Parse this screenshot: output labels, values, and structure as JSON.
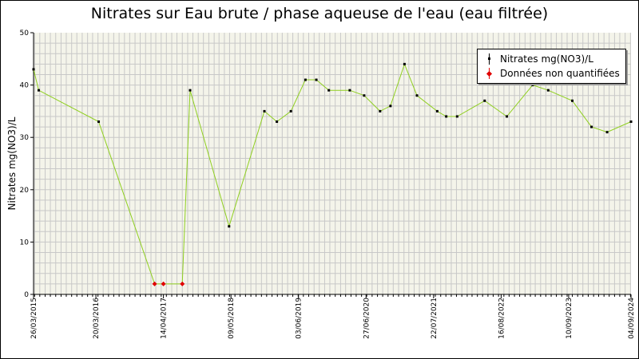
{
  "chart_data": {
    "type": "line",
    "title": "Nitrates sur Eau brute / phase aqueuse de l'eau (eau filtrée)",
    "ylabel": "Nitrates mg(NO3)/L",
    "xlabel": "",
    "ylim": [
      0,
      50
    ],
    "yticks": [
      "0",
      "10",
      "20",
      "30",
      "40",
      "50"
    ],
    "xlim": [
      "2015-03-26",
      "2024-09-04"
    ],
    "xtick_labels": [
      {
        "date": "2015-03-26",
        "label": "26/03/2015"
      },
      {
        "date": "2016-03-20",
        "label": "20/03/2016"
      },
      {
        "date": "2017-04-14",
        "label": "14/04/2017"
      },
      {
        "date": "2018-05-09",
        "label": "09/05/2018"
      },
      {
        "date": "2019-06-03",
        "label": "03/06/2019"
      },
      {
        "date": "2020-06-27",
        "label": "27/06/2020"
      },
      {
        "date": "2021-07-22",
        "label": "22/07/2021"
      },
      {
        "date": "2022-08-16",
        "label": "16/08/2022"
      },
      {
        "date": "2023-09-10",
        "label": "10/09/2023"
      },
      {
        "date": "2024-09-04",
        "label": "04/09/2024"
      }
    ],
    "grid": true,
    "legend_position": "top-right",
    "colors": {
      "line": "#8fcf1f",
      "quantified_marker": "#000000",
      "non_quantified_marker": "#e00000",
      "plot_background": "#f4f4ea",
      "grid": "#c8c8c8"
    },
    "series": [
      {
        "name": "Nitrates mg(NO3)/L",
        "points": [
          {
            "date": "2015-03-26",
            "value": 43
          },
          {
            "date": "2015-04-25",
            "value": 39
          },
          {
            "date": "2016-04-05",
            "value": 33
          },
          {
            "date": "2017-02-22",
            "value": 2
          },
          {
            "date": "2017-04-14",
            "value": 2
          },
          {
            "date": "2017-08-01",
            "value": 2
          },
          {
            "date": "2017-09-15",
            "value": 39
          },
          {
            "date": "2018-04-28",
            "value": 13
          },
          {
            "date": "2018-11-18",
            "value": 35
          },
          {
            "date": "2019-01-29",
            "value": 33
          },
          {
            "date": "2019-04-20",
            "value": 35
          },
          {
            "date": "2019-07-13",
            "value": 41
          },
          {
            "date": "2019-09-14",
            "value": 41
          },
          {
            "date": "2019-11-25",
            "value": 39
          },
          {
            "date": "2020-03-25",
            "value": 39
          },
          {
            "date": "2020-06-16",
            "value": 38
          },
          {
            "date": "2020-09-16",
            "value": 35
          },
          {
            "date": "2020-11-15",
            "value": 36
          },
          {
            "date": "2021-02-04",
            "value": 44
          },
          {
            "date": "2021-04-17",
            "value": 38
          },
          {
            "date": "2021-08-12",
            "value": 35
          },
          {
            "date": "2021-10-03",
            "value": 34
          },
          {
            "date": "2021-12-05",
            "value": 34
          },
          {
            "date": "2022-05-13",
            "value": 37
          },
          {
            "date": "2022-09-18",
            "value": 34
          },
          {
            "date": "2023-02-14",
            "value": 40
          },
          {
            "date": "2023-05-15",
            "value": 39
          },
          {
            "date": "2023-10-01",
            "value": 37
          },
          {
            "date": "2024-01-20",
            "value": 32
          },
          {
            "date": "2024-04-19",
            "value": 31
          },
          {
            "date": "2024-09-04",
            "value": 33
          }
        ]
      },
      {
        "name": "Données non quantifiées",
        "points": [
          {
            "date": "2017-02-22",
            "value": 2
          },
          {
            "date": "2017-04-14",
            "value": 2
          },
          {
            "date": "2017-08-01",
            "value": 2
          }
        ]
      }
    ]
  }
}
